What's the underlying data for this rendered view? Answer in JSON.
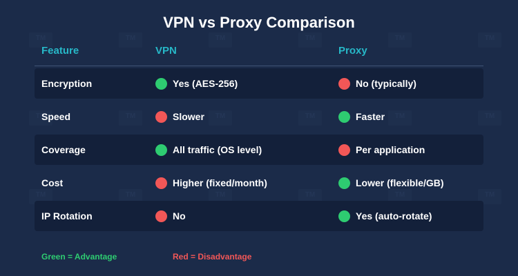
{
  "title": "VPN vs Proxy Comparison",
  "headers": {
    "feature": "Feature",
    "vpn": "VPN",
    "proxy": "Proxy"
  },
  "rows": [
    {
      "feature": "Encryption",
      "vpn": {
        "text": "Yes (AES-256)",
        "status": "advantage"
      },
      "proxy": {
        "text": "No (typically)",
        "status": "disadvantage"
      }
    },
    {
      "feature": "Speed",
      "vpn": {
        "text": "Slower",
        "status": "disadvantage"
      },
      "proxy": {
        "text": "Faster",
        "status": "advantage"
      }
    },
    {
      "feature": "Coverage",
      "vpn": {
        "text": "All traffic (OS level)",
        "status": "advantage"
      },
      "proxy": {
        "text": "Per application",
        "status": "disadvantage"
      }
    },
    {
      "feature": "Cost",
      "vpn": {
        "text": "Higher (fixed/month)",
        "status": "disadvantage"
      },
      "proxy": {
        "text": "Lower (flexible/GB)",
        "status": "advantage"
      }
    },
    {
      "feature": "IP Rotation",
      "vpn": {
        "text": "No",
        "status": "disadvantage"
      },
      "proxy": {
        "text": "Yes (auto-rotate)",
        "status": "advantage"
      }
    }
  ],
  "legend": {
    "advantage": "Green = Advantage",
    "disadvantage": "Red = Disadvantage"
  },
  "colors": {
    "background": "#1b2b49",
    "row_shade": "#13203a",
    "header_text": "#27b8c8",
    "advantage": "#2ecc71",
    "disadvantage": "#f25757",
    "text": "#ffffff"
  },
  "watermark": {
    "text": "TM",
    "icon": "tm-watermark-icon"
  }
}
